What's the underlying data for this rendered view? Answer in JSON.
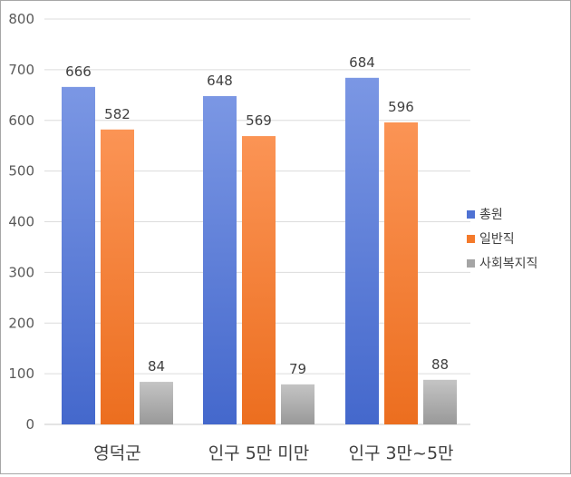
{
  "chart_data": {
    "type": "bar",
    "categories": [
      "영덕군",
      "인구 5만 미만",
      "인구 3만~5만"
    ],
    "series": [
      {
        "name": "총원",
        "values": [
          666,
          648,
          684
        ],
        "color": "#4f72d3"
      },
      {
        "name": "일반직",
        "values": [
          582,
          569,
          596
        ],
        "color": "#f47a2b"
      },
      {
        "name": "사회복지직",
        "values": [
          84,
          79,
          88
        ],
        "color": "#a5a5a5"
      }
    ],
    "y_ticks": [
      "0",
      "100",
      "200",
      "300",
      "400",
      "500",
      "600",
      "700",
      "800"
    ],
    "ylim": [
      0,
      800
    ],
    "grid": true,
    "legend_position": "right",
    "data_labels": true,
    "title": "",
    "xlabel": "",
    "ylabel": ""
  }
}
